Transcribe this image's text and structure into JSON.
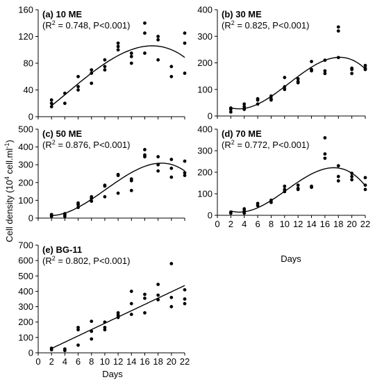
{
  "figure": {
    "ylabel_main": "Cell density (10",
    "ylabel_exp": "4",
    "ylabel_tail": " cell.ml",
    "ylabel_exp2": "-1",
    "ylabel_close": ")",
    "xlabel": "Days"
  },
  "chart_data": [
    {
      "type": "scatter",
      "panel": "a",
      "title": "(a) 10 ME",
      "stat_r2_pre": "(R",
      "stat_r2_sup": "2",
      "stat_r2_post": " = 0.748, P<0.001)",
      "xlabel": "",
      "ylabel": "",
      "xlim": [
        0,
        22
      ],
      "ylim": [
        0,
        160
      ],
      "yticks": [
        0,
        40,
        80,
        120,
        160
      ],
      "xticks": [],
      "fit": "cubic",
      "points": [
        [
          2,
          15
        ],
        [
          2,
          20
        ],
        [
          2,
          25
        ],
        [
          4,
          20
        ],
        [
          4,
          35
        ],
        [
          6,
          40
        ],
        [
          6,
          45
        ],
        [
          6,
          60
        ],
        [
          8,
          50
        ],
        [
          8,
          65
        ],
        [
          8,
          70
        ],
        [
          10,
          70
        ],
        [
          10,
          75
        ],
        [
          10,
          85
        ],
        [
          12,
          100
        ],
        [
          12,
          105
        ],
        [
          12,
          110
        ],
        [
          14,
          80
        ],
        [
          14,
          90
        ],
        [
          14,
          95
        ],
        [
          16,
          95
        ],
        [
          16,
          125
        ],
        [
          16,
          140
        ],
        [
          18,
          85
        ],
        [
          18,
          115
        ],
        [
          18,
          120
        ],
        [
          20,
          60
        ],
        [
          20,
          75
        ],
        [
          22,
          65
        ],
        [
          22,
          110
        ],
        [
          22,
          125
        ]
      ]
    },
    {
      "type": "scatter",
      "panel": "b",
      "title": "(b) 30 ME",
      "stat_r2_pre": "(R",
      "stat_r2_sup": "2",
      "stat_r2_post": " = 0.825, P<0.001)",
      "xlabel": "",
      "ylabel": "",
      "xlim": [
        0,
        22
      ],
      "ylim": [
        0,
        400
      ],
      "yticks": [
        0,
        100,
        200,
        300,
        400
      ],
      "xticks": [],
      "fit": "cubic",
      "points": [
        [
          2,
          15
        ],
        [
          2,
          25
        ],
        [
          2,
          30
        ],
        [
          4,
          25
        ],
        [
          4,
          35
        ],
        [
          4,
          45
        ],
        [
          6,
          45
        ],
        [
          6,
          60
        ],
        [
          6,
          65
        ],
        [
          8,
          60
        ],
        [
          8,
          65
        ],
        [
          8,
          75
        ],
        [
          10,
          100
        ],
        [
          10,
          110
        ],
        [
          10,
          145
        ],
        [
          12,
          125
        ],
        [
          12,
          130
        ],
        [
          12,
          140
        ],
        [
          14,
          170
        ],
        [
          14,
          175
        ],
        [
          14,
          205
        ],
        [
          16,
          160
        ],
        [
          16,
          170
        ],
        [
          16,
          210
        ],
        [
          18,
          220
        ],
        [
          18,
          320
        ],
        [
          18,
          335
        ],
        [
          20,
          160
        ],
        [
          20,
          175
        ],
        [
          20,
          180
        ],
        [
          22,
          175
        ],
        [
          22,
          180
        ],
        [
          22,
          190
        ]
      ]
    },
    {
      "type": "scatter",
      "panel": "c",
      "title": "(c) 50 ME",
      "stat_r2_pre": "(R",
      "stat_r2_sup": "2",
      "stat_r2_post": " = 0.876, P<0.001)",
      "xlabel": "",
      "ylabel": "",
      "xlim": [
        0,
        22
      ],
      "ylim": [
        0,
        500
      ],
      "yticks": [
        0,
        100,
        200,
        300,
        400,
        500
      ],
      "xticks": [],
      "fit": "cubic",
      "points": [
        [
          2,
          10
        ],
        [
          2,
          15
        ],
        [
          2,
          20
        ],
        [
          4,
          10
        ],
        [
          4,
          20
        ],
        [
          4,
          25
        ],
        [
          6,
          60
        ],
        [
          6,
          75
        ],
        [
          6,
          85
        ],
        [
          8,
          95
        ],
        [
          8,
          110
        ],
        [
          8,
          120
        ],
        [
          10,
          120
        ],
        [
          10,
          180
        ],
        [
          10,
          185
        ],
        [
          12,
          140
        ],
        [
          12,
          240
        ],
        [
          12,
          245
        ],
        [
          14,
          155
        ],
        [
          14,
          210
        ],
        [
          14,
          220
        ],
        [
          16,
          345
        ],
        [
          16,
          355
        ],
        [
          16,
          385
        ],
        [
          18,
          265
        ],
        [
          18,
          300
        ],
        [
          18,
          345
        ],
        [
          20,
          230
        ],
        [
          20,
          280
        ],
        [
          20,
          330
        ],
        [
          22,
          240
        ],
        [
          22,
          255
        ],
        [
          22,
          320
        ]
      ]
    },
    {
      "type": "scatter",
      "panel": "d",
      "title": "(d) 70 ME",
      "stat_r2_pre": "(R",
      "stat_r2_sup": "2",
      "stat_r2_post": " = 0.772, P<0.001)",
      "xlabel": "Days",
      "ylabel": "",
      "xlim": [
        0,
        22
      ],
      "ylim": [
        0,
        400
      ],
      "yticks": [
        0,
        100,
        200,
        300,
        400
      ],
      "xticks": [
        0,
        2,
        4,
        6,
        8,
        10,
        12,
        14,
        16,
        18,
        20,
        22
      ],
      "fit": "cubic",
      "points": [
        [
          2,
          10
        ],
        [
          2,
          15
        ],
        [
          4,
          10
        ],
        [
          4,
          20
        ],
        [
          4,
          30
        ],
        [
          6,
          45
        ],
        [
          6,
          55
        ],
        [
          8,
          60
        ],
        [
          8,
          70
        ],
        [
          10,
          110
        ],
        [
          10,
          120
        ],
        [
          10,
          135
        ],
        [
          12,
          120
        ],
        [
          12,
          125
        ],
        [
          12,
          140
        ],
        [
          14,
          130
        ],
        [
          14,
          135
        ],
        [
          16,
          265
        ],
        [
          16,
          285
        ],
        [
          16,
          360
        ],
        [
          18,
          160
        ],
        [
          18,
          180
        ],
        [
          18,
          230
        ],
        [
          20,
          165
        ],
        [
          20,
          180
        ],
        [
          20,
          195
        ],
        [
          22,
          120
        ],
        [
          22,
          140
        ],
        [
          22,
          175
        ]
      ]
    },
    {
      "type": "scatter",
      "panel": "e",
      "title": "(e) BG-11",
      "stat_r2_pre": "(R",
      "stat_r2_sup": "2",
      "stat_r2_post": " = 0.802, P<0.001)",
      "xlabel": "Days",
      "ylabel": "",
      "xlim": [
        0,
        22
      ],
      "ylim": [
        0,
        700
      ],
      "yticks": [
        0,
        100,
        200,
        300,
        400,
        500,
        600,
        700
      ],
      "xticks": [
        0,
        2,
        4,
        6,
        8,
        10,
        12,
        14,
        16,
        18,
        20,
        22
      ],
      "fit": "linear",
      "points": [
        [
          2,
          20
        ],
        [
          2,
          30
        ],
        [
          4,
          15
        ],
        [
          4,
          25
        ],
        [
          6,
          50
        ],
        [
          6,
          150
        ],
        [
          6,
          165
        ],
        [
          8,
          90
        ],
        [
          8,
          140
        ],
        [
          8,
          205
        ],
        [
          10,
          150
        ],
        [
          10,
          165
        ],
        [
          10,
          200
        ],
        [
          12,
          230
        ],
        [
          12,
          245
        ],
        [
          12,
          260
        ],
        [
          14,
          250
        ],
        [
          14,
          320
        ],
        [
          14,
          400
        ],
        [
          16,
          260
        ],
        [
          16,
          355
        ],
        [
          16,
          380
        ],
        [
          18,
          345
        ],
        [
          18,
          375
        ],
        [
          18,
          445
        ],
        [
          20,
          300
        ],
        [
          20,
          360
        ],
        [
          20,
          580
        ],
        [
          22,
          320
        ],
        [
          22,
          350
        ],
        [
          22,
          410
        ]
      ]
    }
  ]
}
